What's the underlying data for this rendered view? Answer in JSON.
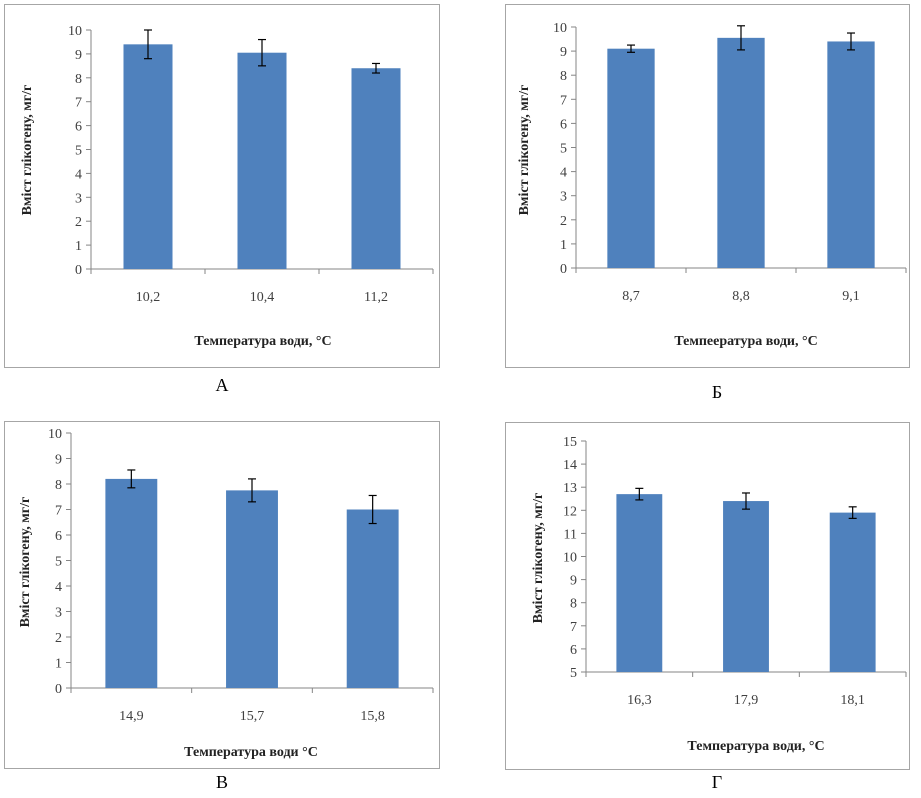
{
  "chart_data": [
    {
      "type": "bar",
      "caption": "А",
      "categories": [
        "10,2",
        "10,4",
        "11,2"
      ],
      "values": [
        9.4,
        9.05,
        8.4
      ],
      "errors": [
        0.6,
        0.55,
        0.2
      ],
      "ylabel": "Вміст глікогену, мг/г",
      "xlabel": "Температура води, °С",
      "ylim": [
        0,
        10
      ],
      "yticks": [
        "0",
        "1",
        "2",
        "3",
        "4",
        "5",
        "6",
        "7",
        "8",
        "9",
        "10"
      ],
      "grid": false,
      "bar_color": "#4f81bd"
    },
    {
      "type": "bar",
      "caption": "Б",
      "categories": [
        "8,7",
        "8,8",
        "9,1"
      ],
      "values": [
        9.1,
        9.55,
        9.4
      ],
      "errors": [
        0.15,
        0.5,
        0.35
      ],
      "ylabel": "Вміст глікогену, мг/г",
      "xlabel": "Темпеература води, °С",
      "ylim": [
        0,
        10
      ],
      "yticks": [
        "0",
        "1",
        "2",
        "3",
        "4",
        "5",
        "6",
        "7",
        "8",
        "9",
        "10"
      ],
      "grid": false,
      "bar_color": "#4f81bd"
    },
    {
      "type": "bar",
      "caption": "В",
      "categories": [
        "14,9",
        "15,7",
        "15,8"
      ],
      "values": [
        8.2,
        7.75,
        7.0
      ],
      "errors": [
        0.35,
        0.45,
        0.55
      ],
      "ylabel": "Вміст глікогену, мг/г",
      "xlabel": "Температура води °С",
      "ylim": [
        0,
        10
      ],
      "yticks": [
        "0",
        "1",
        "2",
        "3",
        "4",
        "5",
        "6",
        "7",
        "8",
        "9",
        "10"
      ],
      "grid": false,
      "bar_color": "#4f81bd"
    },
    {
      "type": "bar",
      "caption": "Г",
      "categories": [
        "16,3",
        "17,9",
        "18,1"
      ],
      "values": [
        12.7,
        12.4,
        11.9
      ],
      "errors": [
        0.25,
        0.35,
        0.25
      ],
      "ylabel": "Вміст глікогену, мг/г",
      "xlabel": "Температура води, °С",
      "ylim": [
        5,
        15
      ],
      "yticks": [
        "5",
        "6",
        "7",
        "8",
        "9",
        "10",
        "11",
        "12",
        "13",
        "14",
        "15"
      ],
      "grid": false,
      "bar_color": "#4f81bd"
    }
  ]
}
